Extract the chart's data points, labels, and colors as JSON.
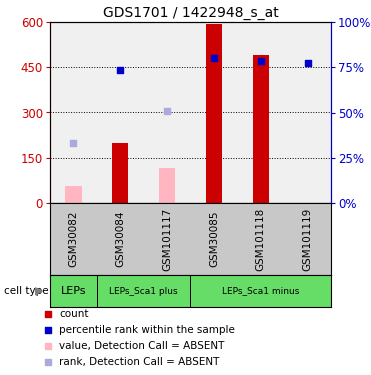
{
  "title": "GDS1701 / 1422948_s_at",
  "samples": [
    "GSM30082",
    "GSM30084",
    "GSM101117",
    "GSM30085",
    "GSM101118",
    "GSM101119"
  ],
  "red_bars": [
    null,
    200,
    null,
    595,
    490,
    null
  ],
  "pink_bars": [
    55,
    null,
    115,
    null,
    null,
    null
  ],
  "blue_squares": [
    null,
    440,
    null,
    480,
    470,
    465
  ],
  "light_blue_squares": [
    200,
    null,
    305,
    null,
    null,
    null
  ],
  "ylim_left": [
    0,
    600
  ],
  "ylim_right": [
    0,
    100
  ],
  "yticks_left": [
    0,
    150,
    300,
    450,
    600
  ],
  "yticks_right": [
    0,
    25,
    50,
    75,
    100
  ],
  "ytick_labels_left": [
    "0",
    "150",
    "300",
    "450",
    "600"
  ],
  "ytick_labels_right": [
    "0%",
    "25%",
    "50%",
    "75%",
    "100%"
  ],
  "bar_width": 0.35,
  "red_color": "#CC0000",
  "pink_color": "#FFB6C1",
  "blue_color": "#0000CC",
  "light_blue_color": "#AAAADD",
  "bg_color": "#FFFFFF",
  "plot_bg": "#F0F0F0",
  "left_axis_color": "#CC0000",
  "right_axis_color": "#0000CC",
  "cell_type_color": "#66DD66",
  "xlabel_bg": "#C8C8C8",
  "boundaries": [
    0,
    1,
    3,
    6
  ],
  "ct_labels": [
    "LEPs",
    "LEPs_Sca1 plus",
    "LEPs_Sca1 minus"
  ],
  "legend_items": [
    {
      "color": "#CC0000",
      "label": "count"
    },
    {
      "color": "#0000CC",
      "label": "percentile rank within the sample"
    },
    {
      "color": "#FFB6C1",
      "label": "value, Detection Call = ABSENT"
    },
    {
      "color": "#AAAADD",
      "label": "rank, Detection Call = ABSENT"
    }
  ]
}
